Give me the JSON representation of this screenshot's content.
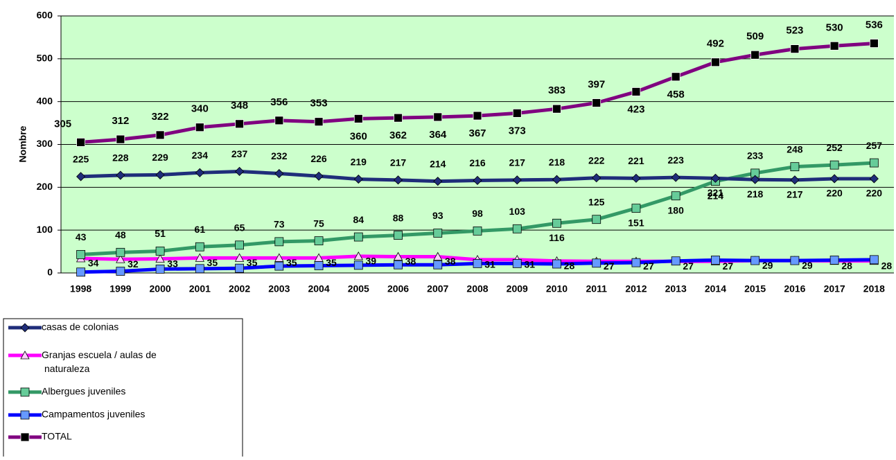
{
  "chart_data": {
    "type": "line",
    "y_label": "Nombre",
    "categories": [
      "1998",
      "1999",
      "2000",
      "2001",
      "2002",
      "2003",
      "2004",
      "2005",
      "2006",
      "2007",
      "2008",
      "2009",
      "2010",
      "2011",
      "2012",
      "2013",
      "2014",
      "2015",
      "2016",
      "2017",
      "2018"
    ],
    "ylim": [
      0,
      600
    ],
    "yticks": [
      0,
      100,
      200,
      300,
      400,
      500,
      600
    ],
    "grid": true,
    "series": [
      {
        "name": "casas de colonias",
        "color": "#1f2d7a",
        "values": [
          225,
          228,
          229,
          234,
          237,
          232,
          226,
          219,
          217,
          214,
          216,
          217,
          218,
          222,
          221,
          223,
          221,
          218,
          217,
          220,
          220
        ]
      },
      {
        "name": "Granjas escuela / aulas de naturaleza",
        "color": "#ff00ff",
        "values": [
          34,
          32,
          33,
          35,
          35,
          35,
          35,
          39,
          38,
          38,
          31,
          31,
          28,
          27,
          27,
          27,
          27,
          29,
          29,
          28,
          28
        ]
      },
      {
        "name": "Albergues juveniles",
        "color": "#339966",
        "values": [
          43,
          48,
          51,
          61,
          65,
          73,
          75,
          84,
          88,
          93,
          98,
          103,
          116,
          125,
          151,
          180,
          214,
          233,
          248,
          252,
          257
        ]
      },
      {
        "name": "Campamentos juveniles",
        "color": "#0000ff",
        "values": [
          2,
          4,
          9,
          10,
          11,
          16,
          17,
          18,
          19,
          19,
          22,
          22,
          21,
          23,
          24,
          28,
          30,
          29,
          29,
          30,
          31
        ]
      },
      {
        "name": "TOTAL",
        "color": "#800080",
        "values": [
          305,
          312,
          322,
          340,
          348,
          356,
          353,
          360,
          362,
          364,
          367,
          373,
          383,
          397,
          423,
          458,
          492,
          509,
          523,
          530,
          536
        ]
      }
    ]
  }
}
